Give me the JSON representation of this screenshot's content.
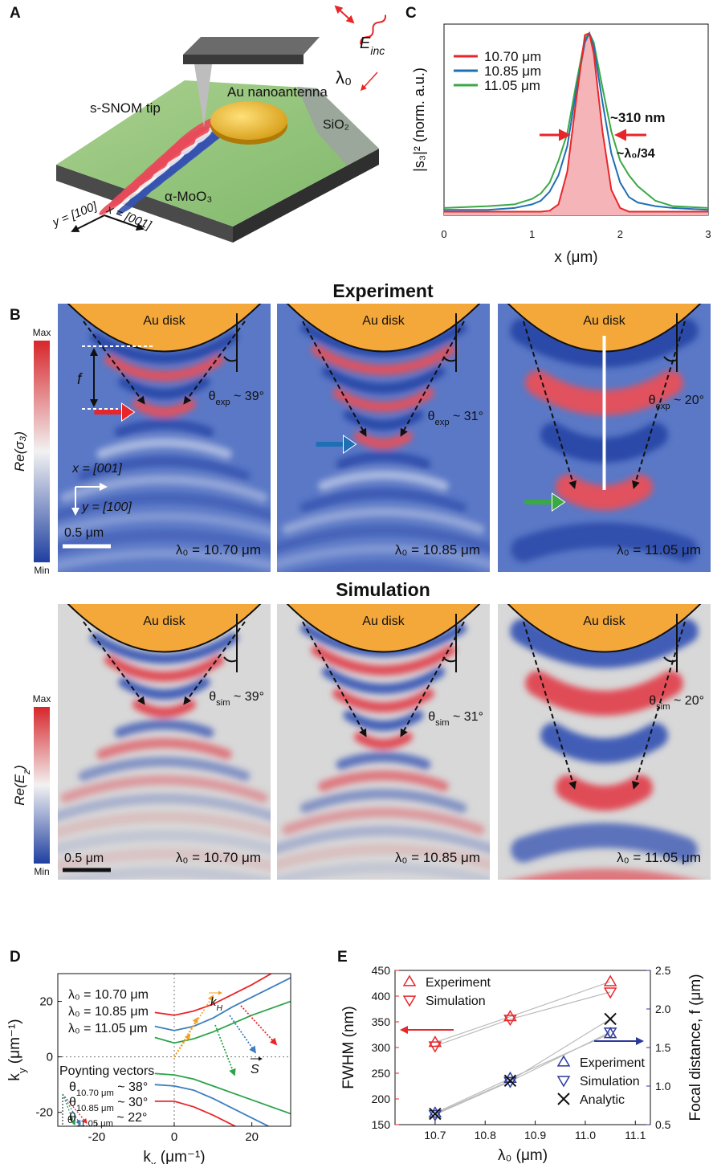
{
  "panel_labels": [
    "A",
    "B",
    "C",
    "D",
    "E"
  ],
  "panel_a": {
    "tip": "s-SNOM tip",
    "antenna": "Au nanoantenna",
    "substrate": "SiO₂",
    "crystal": "α-MoO₃",
    "field": {
      "main": "E",
      "sub": "inc"
    },
    "wavelength": "λ₀",
    "axis_y": "y = [100]",
    "axis_x": "x = [001]"
  },
  "panel_b": {
    "experiment_title": "Experiment",
    "simulation_title": "Simulation",
    "experiment": {
      "colorbar_label": "Re(σ₃)",
      "max": "Max",
      "min": "Min",
      "focal_label": "f",
      "axis_x": "x = [001]",
      "axis_y": "y = [100]",
      "scale_bar": "0.5 μm",
      "images": [
        {
          "disk": "Au disk",
          "angle": {
            "main": "θ",
            "sub": "exp",
            "rest": " ~ 39°"
          },
          "wavelength": "λ₀ = 10.70 μm"
        },
        {
          "disk": "Au disk",
          "angle": {
            "main": "θ",
            "sub": "exp",
            "rest": " ~ 31°"
          },
          "wavelength": "λ₀ = 10.85 μm"
        },
        {
          "disk": "Au disk",
          "angle": {
            "main": "θ",
            "sub": "exp",
            "rest": " ~ 20°"
          },
          "wavelength": "λ₀ = 11.05 μm"
        }
      ]
    },
    "simulation": {
      "colorbar_label": {
        "main": "Re(E",
        "sub": "z",
        "rest": ")"
      },
      "max": "Max",
      "min": "Min",
      "scale_bar": "0.5 μm",
      "images": [
        {
          "disk": "Au disk",
          "angle": {
            "main": "θ",
            "sub": "sim",
            "rest": " ~ 39°"
          },
          "wavelength": "λ₀ = 10.70 μm"
        },
        {
          "disk": "Au disk",
          "angle": {
            "main": "θ",
            "sub": "sim",
            "rest": " ~ 31°"
          },
          "wavelength": "λ₀ = 10.85 μm"
        },
        {
          "disk": "Au disk",
          "angle": {
            "main": "θ",
            "sub": "sim",
            "rest": " ~ 20°"
          },
          "wavelength": "λ₀ = 11.05 μm"
        }
      ]
    }
  },
  "chart_data": [
    {
      "type": "line",
      "x_label": "x (μm)",
      "y_label": "|s₃|² (norm. a.u.)",
      "xlim": [
        0,
        3
      ],
      "xticks": [
        0,
        1,
        2,
        3
      ],
      "ylim": [
        0,
        1.05
      ],
      "x": [
        0,
        0.5,
        0.8,
        1.0,
        1.1,
        1.2,
        1.3,
        1.4,
        1.5,
        1.6,
        1.65,
        1.7,
        1.8,
        1.9,
        2.0,
        2.1,
        2.2,
        2.4,
        2.6,
        3.0
      ],
      "series": [
        {
          "name": "10.70 μm",
          "color": "#e8262a",
          "fill": "#f5b5b8",
          "values": [
            0.02,
            0.02,
            0.02,
            0.02,
            0.02,
            0.025,
            0.06,
            0.24,
            0.63,
            0.99,
            1.0,
            0.89,
            0.46,
            0.14,
            0.04,
            0.02,
            0.02,
            0.02,
            0.02,
            0.02
          ]
        },
        {
          "name": "10.85 μm",
          "color": "#1f6fb4",
          "values": [
            0.03,
            0.03,
            0.04,
            0.06,
            0.08,
            0.13,
            0.22,
            0.38,
            0.68,
            0.95,
            1.0,
            0.93,
            0.62,
            0.34,
            0.18,
            0.1,
            0.07,
            0.05,
            0.04,
            0.03
          ]
        },
        {
          "name": "11.05 μm",
          "color": "#3aa845",
          "values": [
            0.04,
            0.05,
            0.06,
            0.09,
            0.12,
            0.18,
            0.3,
            0.45,
            0.72,
            0.97,
            1.0,
            0.95,
            0.7,
            0.46,
            0.3,
            0.22,
            0.16,
            0.08,
            0.05,
            0.04
          ]
        }
      ],
      "annotations": [
        "~310 nm",
        "~λ₀/34"
      ]
    },
    {
      "type": "line",
      "x_label": {
        "main": "k",
        "sub": "x",
        "rest": " (μm⁻¹)"
      },
      "y_label": {
        "main": "k",
        "sub": "y",
        "rest": " (μm⁻¹)"
      },
      "xlim": [
        -30,
        30
      ],
      "xticks": [
        -20,
        0,
        20
      ],
      "ylim": [
        -25,
        30
      ],
      "yticks": [
        -20,
        0,
        20
      ],
      "series": [
        {
          "name": "λ₀ = 10.70 μm",
          "color": "#e8262a",
          "x": [
            -5,
            0,
            5,
            10,
            15,
            20,
            25,
            null,
            -5,
            0,
            5,
            10,
            15,
            20,
            25
          ],
          "values": [
            16,
            15,
            16.5,
            19,
            22.5,
            26,
            30,
            null,
            -16,
            -16,
            -18,
            -21,
            -24.5,
            -28,
            -31
          ]
        },
        {
          "name": "λ₀ = 10.85 μm",
          "color": "#3b7fc0",
          "x": [
            -5,
            0,
            5,
            10,
            15,
            20,
            25,
            30,
            null,
            -5,
            0,
            5,
            10,
            15,
            20,
            25,
            30
          ],
          "values": [
            11,
            9.5,
            11,
            14,
            18,
            21.5,
            25,
            28.5,
            null,
            -10,
            -10.5,
            -12,
            -15,
            -18.5,
            -22,
            -25.5,
            -29
          ]
        },
        {
          "name": "λ₀ = 11.05 μm",
          "color": "#2ca24a",
          "x": [
            -5,
            0,
            5,
            10,
            15,
            20,
            25,
            30,
            null,
            -5,
            0,
            5,
            10,
            15,
            20,
            25,
            30
          ],
          "values": [
            7,
            5,
            6.5,
            9,
            12,
            15,
            17.5,
            20,
            null,
            -6,
            -6.5,
            -8,
            -10.5,
            -13,
            -15.5,
            -18,
            -20.5
          ]
        }
      ],
      "annotations": {
        "wavevector": {
          "main": "k",
          "sub": "H"
        },
        "poynting_symbol": "S",
        "poynting_title": "Poynting vectors",
        "angles": [
          {
            "main": "θ",
            "sub": "10.70 μm",
            "rest": " ~ 38°"
          },
          {
            "main": "θ",
            "sub": "10.85 μm",
            "rest": " ~ 30°"
          },
          {
            "main": "θ",
            "sub": "11.05 μm",
            "rest": " ~ 22°"
          }
        ],
        "angle_symbol": "θ"
      }
    },
    {
      "type": "scatter",
      "x_label": "λ₀ (μm)",
      "y_label": "FWHM (nm)",
      "y2_label": "Focal distance, f (μm)",
      "xlim": [
        10.62,
        11.13
      ],
      "xticks": [
        10.7,
        10.8,
        10.9,
        {
          "value": 11,
          "label": "11.0"
        },
        11.1
      ],
      "ylim": [
        150,
        450
      ],
      "yticks": [
        150,
        200,
        250,
        300,
        350,
        400,
        450
      ],
      "y2lim": [
        0.5,
        2.5
      ],
      "y2ticks": [
        0.5,
        {
          "value": 1,
          "label": "1.0"
        },
        1.5,
        {
          "value": 2,
          "label": "2.0"
        },
        2.5
      ],
      "y_color": "#e8262a",
      "y2_color": "#2b3a9a",
      "line_color": "#bbbbbb",
      "x": [
        10.7,
        10.85,
        11.05
      ],
      "series": [
        {
          "name": "Experiment",
          "color": "#e8262a",
          "marker": "triangle-up",
          "values": [
            310,
            360,
            428
          ]
        },
        {
          "name": "Simulation",
          "color": "#e8262a",
          "marker": "triangle-down",
          "values": [
            303,
            355,
            408
          ]
        },
        {
          "name": "Experiment",
          "color": "#2b3a9a",
          "marker": "triangle-up",
          "axis": "y2",
          "values": [
            0.65,
            1.1,
            1.68
          ]
        },
        {
          "name": "Simulation",
          "color": "#2b3a9a",
          "marker": "triangle-down",
          "axis": "y2",
          "values": [
            0.63,
            1.06,
            1.7
          ]
        },
        {
          "name": "Analytic",
          "color": "#111111",
          "marker": "x",
          "axis": "y2",
          "values": [
            0.64,
            1.07,
            1.87
          ]
        }
      ]
    }
  ]
}
